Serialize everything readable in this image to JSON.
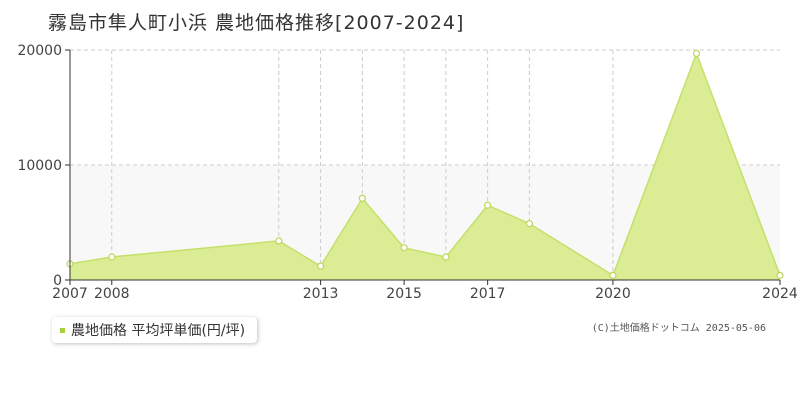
{
  "title": "霧島市隼人町小浜 農地価格推移[2007-2024]",
  "legend": {
    "label": "農地価格 平均坪単価(円/坪)"
  },
  "credit": "(C)土地価格ドットコム 2025-05-06",
  "colors": {
    "fill": "#dbed94",
    "line": "#c5e06a",
    "marker_stroke": "#b9d85a",
    "legend_swatch": "#a8d03c",
    "grid": "#cccccc",
    "band": "#f8f8f8",
    "axis": "#333333",
    "tick_label": "#444444"
  },
  "chart_data": {
    "type": "area",
    "title": "霧島市隼人町小浜 農地価格推移[2007-2024]",
    "xlabel": "",
    "ylabel": "",
    "xlim": [
      2007,
      2024
    ],
    "ylim": [
      0,
      20000
    ],
    "y_ticks": [
      0,
      10000,
      20000
    ],
    "x_tick_labels": [
      "2007",
      "2008",
      "2013",
      "2015",
      "2017",
      "2020",
      "2024"
    ],
    "grid": true,
    "legend_position": "bottom-left",
    "series": [
      {
        "name": "農地価格 平均坪単価(円/坪)",
        "points": [
          {
            "x": 2007,
            "y": 1400
          },
          {
            "x": 2008,
            "y": 2000
          },
          {
            "x": 2012,
            "y": 3400
          },
          {
            "x": 2013,
            "y": 1200
          },
          {
            "x": 2014,
            "y": 7100
          },
          {
            "x": 2015,
            "y": 2800
          },
          {
            "x": 2016,
            "y": 2000
          },
          {
            "x": 2017,
            "y": 6500
          },
          {
            "x": 2018,
            "y": 4900
          },
          {
            "x": 2020,
            "y": 400
          },
          {
            "x": 2022,
            "y": 19700
          },
          {
            "x": 2024,
            "y": 400
          }
        ]
      }
    ]
  }
}
